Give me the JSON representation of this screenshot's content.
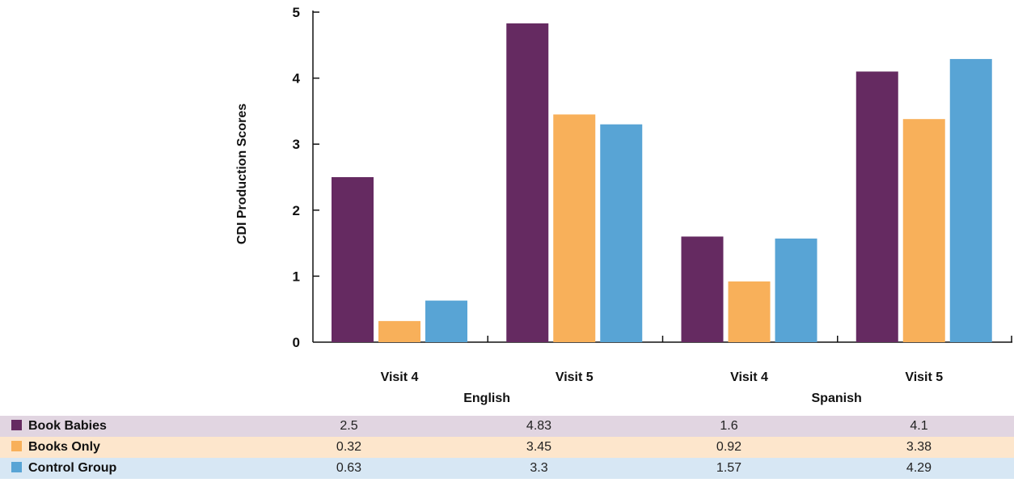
{
  "chart_data": {
    "type": "bar",
    "title": "",
    "xlabel": "",
    "ylabel": "CDI Production Scores",
    "ylim": [
      0,
      5
    ],
    "yticks": [
      "0",
      "1",
      "2",
      "3",
      "4",
      "5"
    ],
    "categories": [
      "Visit 4",
      "Visit 5",
      "Visit 4",
      "Visit 5"
    ],
    "groups": [
      {
        "label": "English",
        "categories": [
          0,
          1
        ]
      },
      {
        "label": "Spanish",
        "categories": [
          2,
          3
        ]
      }
    ],
    "series": [
      {
        "name": "Book Babies",
        "color": "#652a61",
        "row_bg": "#e1d5e1",
        "values": [
          2.5,
          4.83,
          1.6,
          4.1
        ],
        "labels": [
          "2.5",
          "4.83",
          "1.6",
          "4.1"
        ]
      },
      {
        "name": "Books Only",
        "color": "#f8b05a",
        "row_bg": "#fde6cc",
        "values": [
          0.32,
          3.45,
          0.92,
          3.38
        ],
        "labels": [
          "0.32",
          "3.45",
          "0.92",
          "3.38"
        ]
      },
      {
        "name": "Control Group",
        "color": "#58a4d5",
        "row_bg": "#d7e7f4",
        "values": [
          0.63,
          3.3,
          1.57,
          4.29
        ],
        "labels": [
          "0.63",
          "3.3",
          "1.57",
          "4.29"
        ]
      }
    ],
    "grid": false,
    "legend": "table-bottom"
  }
}
